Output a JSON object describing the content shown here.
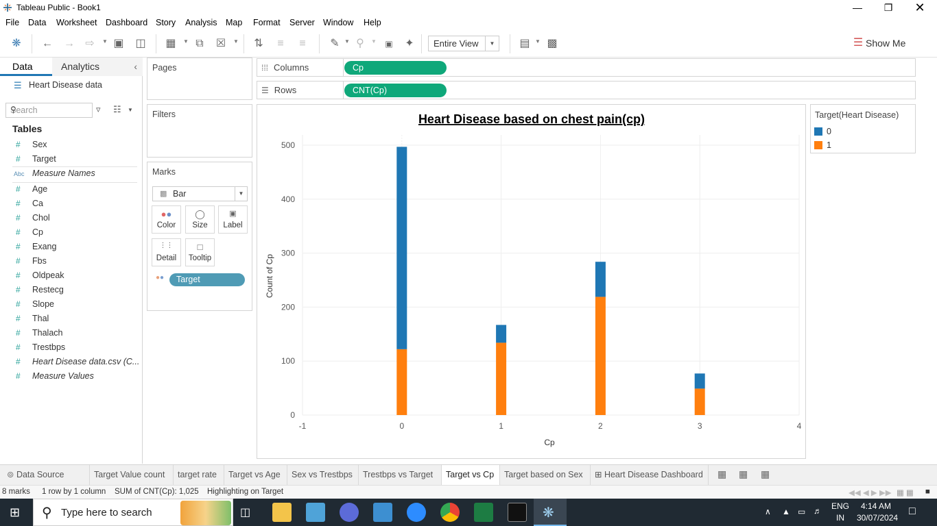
{
  "window": {
    "title": "Tableau Public - Book1"
  },
  "menu": [
    "File",
    "Data",
    "Worksheet",
    "Dashboard",
    "Story",
    "Analysis",
    "Map",
    "Format",
    "Server",
    "Window",
    "Help"
  ],
  "toolbar": {
    "fit": "Entire View",
    "show_me": "Show Me"
  },
  "data_pane": {
    "tabs": {
      "data": "Data",
      "analytics": "Analytics"
    },
    "datasource": "Heart Disease data",
    "search_placeholder": "Search",
    "tables_heading": "Tables",
    "fields": [
      {
        "icon": "#",
        "name": "Sex"
      },
      {
        "icon": "#",
        "name": "Target"
      },
      {
        "icon": "Abc",
        "name": "Measure Names",
        "italic": true
      },
      {
        "icon": "#",
        "name": "Age"
      },
      {
        "icon": "#",
        "name": "Ca"
      },
      {
        "icon": "#",
        "name": "Chol"
      },
      {
        "icon": "#",
        "name": "Cp"
      },
      {
        "icon": "#",
        "name": "Exang"
      },
      {
        "icon": "#",
        "name": "Fbs"
      },
      {
        "icon": "#",
        "name": "Oldpeak"
      },
      {
        "icon": "#",
        "name": "Restecg"
      },
      {
        "icon": "#",
        "name": "Slope"
      },
      {
        "icon": "#",
        "name": "Thal"
      },
      {
        "icon": "#",
        "name": "Thalach"
      },
      {
        "icon": "#",
        "name": "Trestbps"
      },
      {
        "icon": "#",
        "name": "Heart Disease data.csv (C...",
        "italic": true
      },
      {
        "icon": "#",
        "name": "Measure Values",
        "italic": true
      }
    ]
  },
  "cards": {
    "pages": "Pages",
    "filters": "Filters",
    "marks": "Marks",
    "mark_type": "Bar",
    "buttons": {
      "color": "Color",
      "size": "Size",
      "label": "Label",
      "detail": "Detail",
      "tooltip": "Tooltip"
    },
    "color_pill": "Target"
  },
  "shelves": {
    "columns": {
      "label": "Columns",
      "pill": "Cp"
    },
    "rows": {
      "label": "Rows",
      "pill": "CNT(Cp)"
    }
  },
  "legend": {
    "title": "Target(Heart Disease)",
    "items": [
      {
        "label": "0",
        "color": "#1f77b4"
      },
      {
        "label": "1",
        "color": "#ff7f0e"
      }
    ]
  },
  "chart_data": {
    "type": "bar",
    "stacked": true,
    "title": "Heart Disease based on chest pain(cp)",
    "xlabel": "Cp",
    "ylabel": "Count of Cp",
    "x": [
      0,
      1,
      2,
      3
    ],
    "xlim": [
      -1,
      4
    ],
    "ylim": [
      0,
      500
    ],
    "x_ticks": [
      "-1",
      "0",
      "1",
      "2",
      "3",
      "4"
    ],
    "y_ticks": [
      "0",
      "100",
      "200",
      "300",
      "400",
      "500"
    ],
    "series": [
      {
        "name": "1",
        "color": "#ff7f0e",
        "values": [
          122,
          134,
          219,
          49
        ]
      },
      {
        "name": "0",
        "color": "#1f77b4",
        "values": [
          375,
          33,
          65,
          28
        ]
      }
    ]
  },
  "sheet_tabs": [
    {
      "label": "Data Source"
    },
    {
      "label": "Target Value count"
    },
    {
      "label": "target rate"
    },
    {
      "label": "Target vs Age"
    },
    {
      "label": "Sex vs Trestbps"
    },
    {
      "label": "Trestbps vs Target"
    },
    {
      "label": "Target vs Cp",
      "active": true
    },
    {
      "label": "Target based on Sex"
    },
    {
      "label": "Heart Disease Dashboard"
    }
  ],
  "status": {
    "marks": "8 marks",
    "rows_cols": "1 row by 1 column",
    "sum": "SUM of CNT(Cp): 1,025",
    "highlight": "Highlighting on Target"
  },
  "taskbar": {
    "search_placeholder": "Type here to search",
    "lang_top": "ENG",
    "lang_bottom": "IN",
    "time": "4:14 AM",
    "date": "30/07/2024"
  }
}
